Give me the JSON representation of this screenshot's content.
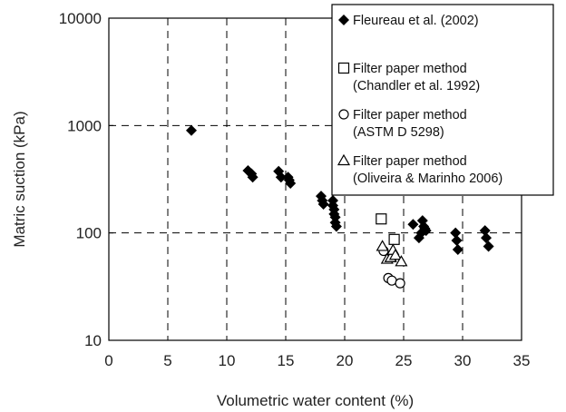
{
  "chart_data": {
    "type": "scatter",
    "xlabel": "Volumetric water content (%)",
    "ylabel": "Matric suction (kPa)",
    "xlim": [
      0,
      35
    ],
    "ylim": [
      10,
      10000
    ],
    "yscale": "log",
    "grid": true,
    "x_ticks": [
      "0",
      "5",
      "10",
      "15",
      "20",
      "25",
      "30",
      "35"
    ],
    "y_ticks": [
      "10",
      "100",
      "1000",
      "10000"
    ],
    "legend_position": "top-right",
    "series": [
      {
        "name": "Fleureau et al. (2002)",
        "marker": "diamond-filled",
        "legend_lines": [
          "Fleureau et al. (2002)"
        ],
        "x": [
          7.0,
          11.8,
          12.1,
          12.2,
          14.4,
          14.6,
          15.2,
          15.3,
          15.4,
          18.0,
          18.1,
          18.2,
          19.0,
          19.0,
          19.1,
          19.1,
          19.2,
          19.2,
          19.3,
          25.8,
          26.3,
          26.5,
          26.6,
          26.7,
          26.8,
          26.9,
          29.4,
          29.5,
          29.6,
          31.9,
          32.0,
          32.2
        ],
        "y": [
          900,
          380,
          355,
          330,
          375,
          330,
          330,
          310,
          290,
          220,
          200,
          185,
          200,
          180,
          165,
          150,
          140,
          125,
          115,
          120,
          90,
          100,
          130,
          115,
          110,
          105,
          100,
          85,
          70,
          105,
          90,
          75
        ]
      },
      {
        "name": "Filter paper method (Chandler et al. 1992)",
        "marker": "square-open",
        "legend_lines": [
          "Filter paper method",
          "(Chandler et al. 1992)"
        ],
        "x": [
          23.1,
          23.9,
          24.2
        ],
        "y": [
          135,
          60,
          87
        ]
      },
      {
        "name": "Filter paper method (ASTM D 5298)",
        "marker": "circle-open",
        "legend_lines": [
          "Filter paper method",
          "(ASTM D 5298)"
        ],
        "x": [
          23.3,
          23.7,
          24.0,
          24.7
        ],
        "y": [
          68,
          38,
          36,
          34
        ]
      },
      {
        "name": "Filter paper method (Oliveira & Marinho 2006)",
        "marker": "triangle-open",
        "legend_lines": [
          "Filter paper method",
          "(Oliveira & Marinho 2006)"
        ],
        "x": [
          23.2,
          23.6,
          23.9,
          24.1,
          24.3,
          24.8
        ],
        "y": [
          75,
          57,
          59,
          69,
          62,
          54
        ]
      }
    ]
  }
}
